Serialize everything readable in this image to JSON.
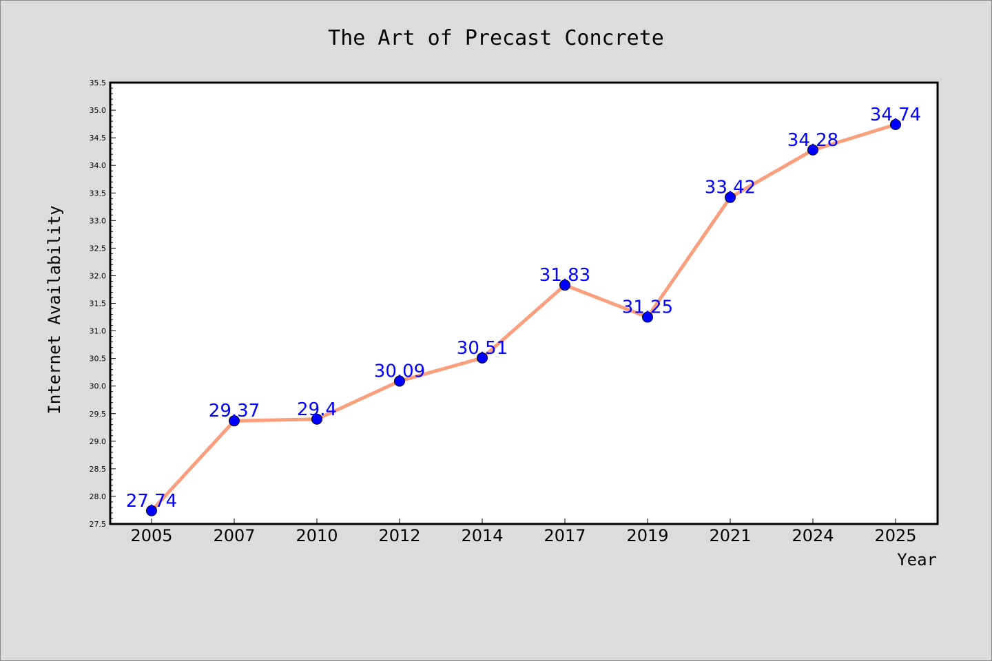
{
  "chart_data": {
    "type": "line",
    "title": "The Art of Precast Concrete",
    "xlabel": "Year",
    "ylabel": "Internet Availability",
    "categories": [
      "2005",
      "2007",
      "2010",
      "2012",
      "2014",
      "2017",
      "2019",
      "2021",
      "2024",
      "2025"
    ],
    "values": [
      27.74,
      29.37,
      29.4,
      30.09,
      30.51,
      31.83,
      31.25,
      33.42,
      34.28,
      34.74
    ],
    "data_labels": [
      "27.74",
      "29.37",
      "29.4",
      "30.09",
      "30.51",
      "31.83",
      "31.25",
      "33.42",
      "34.28",
      "34.74"
    ],
    "ylim": [
      27.5,
      35.5
    ],
    "yticks": [
      "27.5",
      "28.0",
      "28.5",
      "29.0",
      "29.5",
      "30.0",
      "30.5",
      "31.0",
      "31.5",
      "32.0",
      "32.5",
      "33.0",
      "33.5",
      "34.0",
      "34.5",
      "35.0",
      "35.5"
    ],
    "grid": false,
    "legend": "none",
    "colors": {
      "line": "#fa9e7c",
      "marker": "#0000ff",
      "data_label": "#0000ff",
      "background": "#dcdcdc",
      "plot_background": "#ffffff"
    }
  }
}
